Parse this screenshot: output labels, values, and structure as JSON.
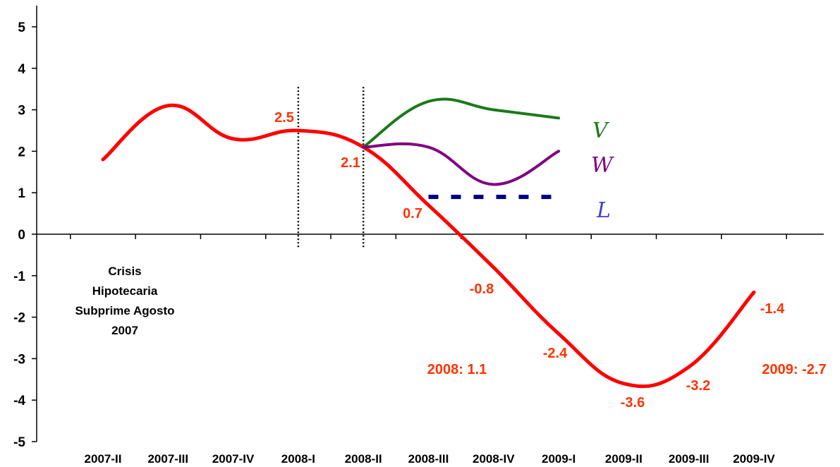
{
  "chart_data": {
    "type": "line",
    "categories": [
      "2007-II",
      "2007-III",
      "2007-IV",
      "2008-I",
      "2008-II",
      "2008-III",
      "2008-IV",
      "2009-I",
      "2009-II",
      "2009-III",
      "2009-IV"
    ],
    "ylim": [
      -5,
      5
    ],
    "yticks": [
      "5",
      "4",
      "3",
      "2",
      "1",
      "0",
      "-1",
      "-2",
      "-3",
      "-4",
      "-5"
    ],
    "series": [
      {
        "key": "main",
        "color": "#ff0000",
        "values": [
          1.8,
          3.1,
          2.3,
          2.5,
          2.1,
          0.7,
          -0.8,
          -2.4,
          -3.6,
          -3.2,
          -1.4
        ]
      },
      {
        "key": "v",
        "name": "V",
        "color": "#1a7a1a",
        "values": [
          null,
          null,
          null,
          null,
          2.1,
          3.2,
          3.0,
          2.8,
          null,
          null,
          null
        ]
      },
      {
        "key": "w",
        "name": "W",
        "color": "#800080",
        "values": [
          null,
          null,
          null,
          null,
          2.1,
          2.1,
          1.2,
          2.0,
          null,
          null,
          null
        ]
      },
      {
        "key": "l",
        "name": "L",
        "color": "#000080",
        "values": [
          null,
          null,
          null,
          null,
          null,
          0.9,
          0.9,
          0.9,
          null,
          null,
          null
        ]
      }
    ],
    "data_labels": [
      "2.5",
      "2.1",
      "0.7",
      "-0.8",
      "-2.4",
      "-3.6",
      "-3.2",
      "-1.4"
    ],
    "annotations": {
      "crisis_note": [
        "Crisis",
        "Hipotecaria",
        "Subprime Agosto",
        "2007"
      ],
      "annual_2008": "2008: 1.1",
      "annual_2009": "2009: -2.7"
    },
    "scenario_labels": {
      "v": "V",
      "w": "W",
      "l": "L"
    },
    "reference_lines": [
      "2008-I",
      "2008-II"
    ],
    "grid": false,
    "legend": "right"
  }
}
